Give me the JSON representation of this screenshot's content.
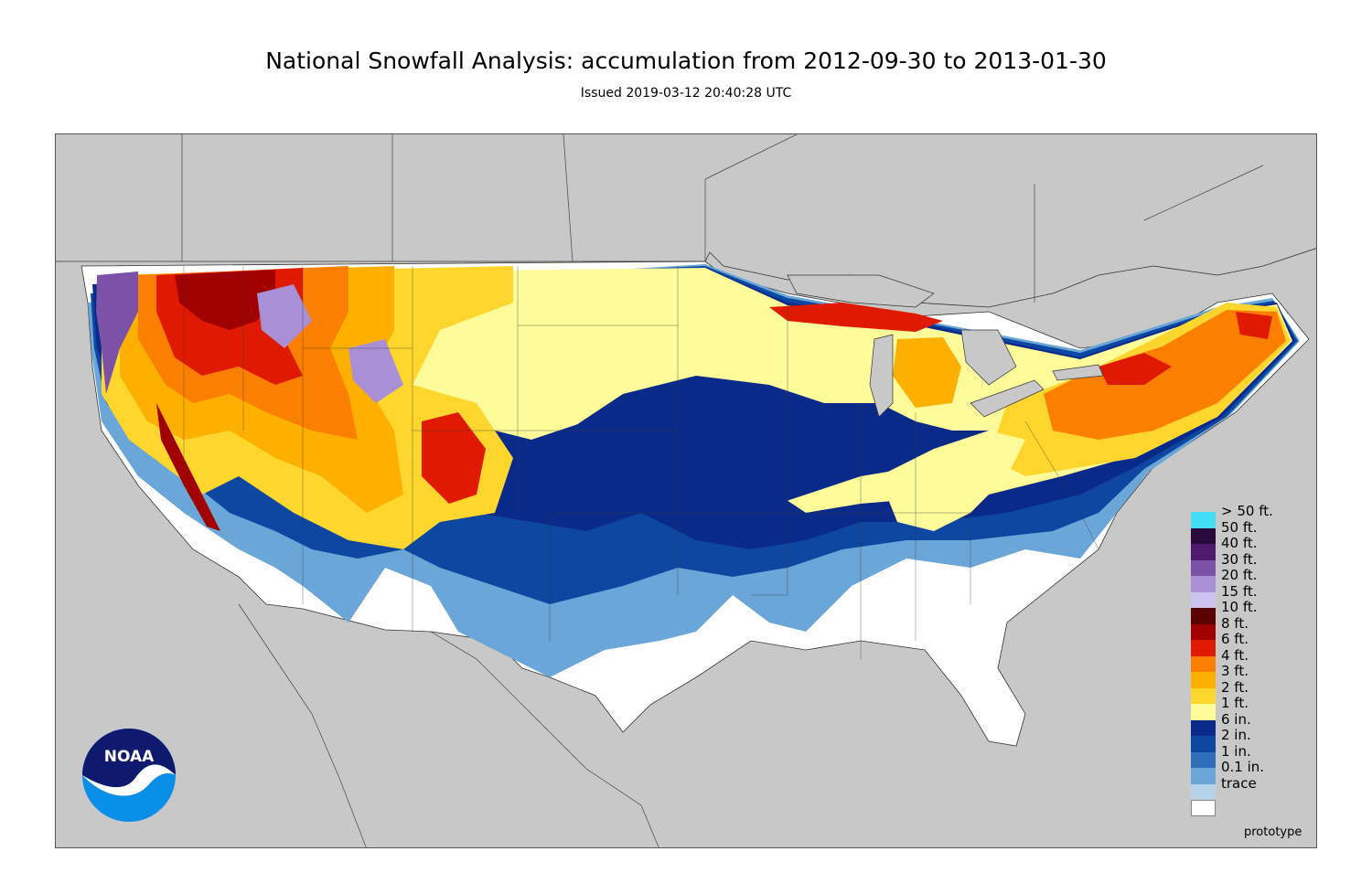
{
  "header": {
    "title": "National Snowfall Analysis: accumulation from 2012-09-30 to 2013-01-30",
    "issued": "Issued 2019-03-12 20:40:28 UTC"
  },
  "legend": [
    {
      "label": "> 50 ft.",
      "color": "#44ddf8"
    },
    {
      "label": "50 ft.",
      "color": "#2a0a3a"
    },
    {
      "label": "40 ft.",
      "color": "#4f1a6e"
    },
    {
      "label": "30 ft.",
      "color": "#7b52a8"
    },
    {
      "label": "20 ft.",
      "color": "#a98fd6"
    },
    {
      "label": "15 ft.",
      "color": "#cdc3f0"
    },
    {
      "label": "10 ft.",
      "color": "#5a0000"
    },
    {
      "label": "8 ft.",
      "color": "#a00000"
    },
    {
      "label": "6 ft.",
      "color": "#e01a00"
    },
    {
      "label": "4 ft.",
      "color": "#fb7f00"
    },
    {
      "label": "3 ft.",
      "color": "#feb000"
    },
    {
      "label": "2 ft.",
      "color": "#fed62e"
    },
    {
      "label": "1 ft.",
      "color": "#fefb9a"
    },
    {
      "label": "6 in.",
      "color": "#0a2a8a"
    },
    {
      "label": "2 in.",
      "color": "#0d47a1"
    },
    {
      "label": "1 in.",
      "color": "#2c6fb8"
    },
    {
      "label": "0.1 in.",
      "color": "#6aa6d8"
    },
    {
      "label": "trace",
      "color": "#b7d3ea"
    }
  ],
  "stamp": "prototype",
  "logo": {
    "text": "NOAA",
    "icon": "noaa-logo-icon"
  },
  "colors": {
    "background": "#c8c8c8",
    "no_snow": "#ffffff"
  }
}
